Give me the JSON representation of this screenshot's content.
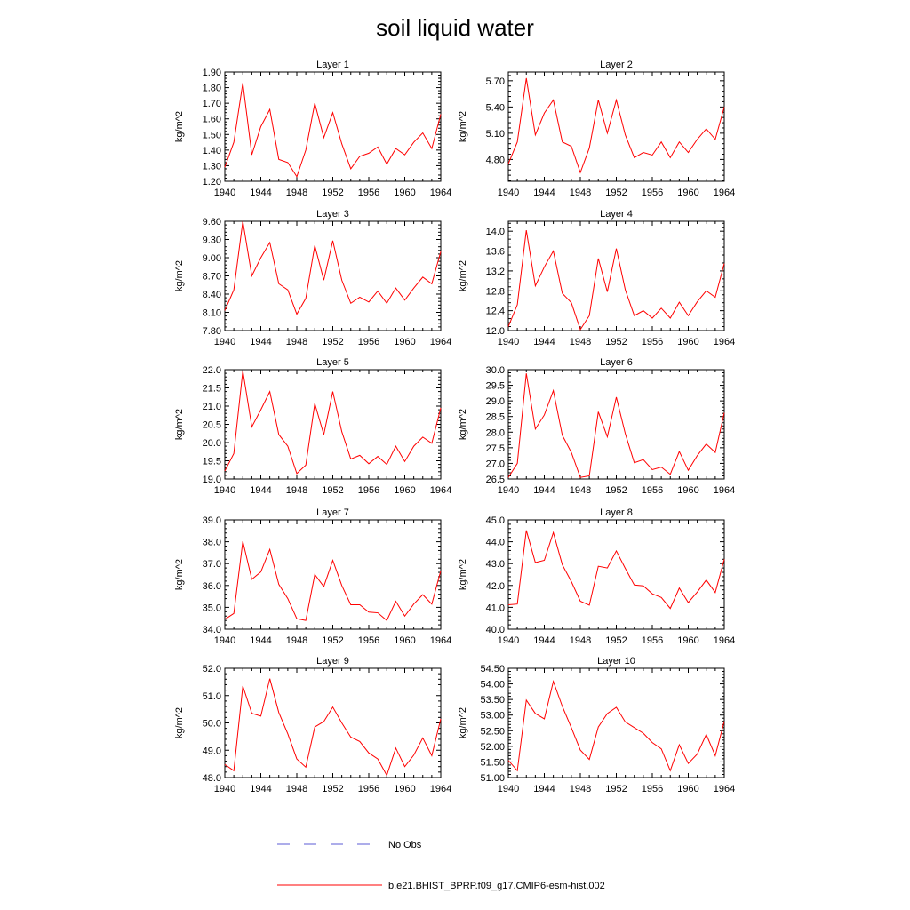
{
  "title": "soil liquid water",
  "legend": {
    "obs_label": "No Obs",
    "model_label": "b.e21.BHIST_BPRP.f09_g17.CMIP6-esm-hist.002",
    "obs_color": "#5b5bd6",
    "model_color": "#ff0000"
  },
  "chart_data": [
    {
      "type": "line",
      "title": "Layer 1",
      "ylabel": "kg/m^2",
      "xlim": [
        1940,
        1964
      ],
      "ylim": [
        1.2,
        1.9
      ],
      "xticks": [
        "1940",
        "1944",
        "1948",
        "1952",
        "1956",
        "1960",
        "1964"
      ],
      "yticks": [
        "1.20",
        "1.30",
        "1.40",
        "1.50",
        "1.60",
        "1.70",
        "1.80",
        "1.90"
      ],
      "x": [
        1940,
        1941,
        1942,
        1943,
        1944,
        1945,
        1946,
        1947,
        1948,
        1949,
        1950,
        1951,
        1952,
        1953,
        1954,
        1955,
        1956,
        1957,
        1958,
        1959,
        1960,
        1961,
        1962,
        1963,
        1964
      ],
      "series": [
        {
          "name": "b.e21.BHIST_BPRP.f09_g17.CMIP6-esm-hist.002",
          "values": [
            1.29,
            1.45,
            1.83,
            1.37,
            1.55,
            1.66,
            1.34,
            1.32,
            1.23,
            1.4,
            1.7,
            1.48,
            1.64,
            1.44,
            1.28,
            1.36,
            1.38,
            1.42,
            1.31,
            1.41,
            1.37,
            1.45,
            1.51,
            1.41,
            1.63
          ]
        }
      ]
    },
    {
      "type": "line",
      "title": "Layer 2",
      "ylabel": "kg/m^2",
      "xlim": [
        1940,
        1964
      ],
      "ylim": [
        4.55,
        5.8
      ],
      "xticks": [
        "1940",
        "1944",
        "1948",
        "1952",
        "1956",
        "1960",
        "1964"
      ],
      "yticks": [
        "4.80",
        "5.10",
        "5.40",
        "5.70"
      ],
      "x": [
        1940,
        1941,
        1942,
        1943,
        1944,
        1945,
        1946,
        1947,
        1948,
        1949,
        1950,
        1951,
        1952,
        1953,
        1954,
        1955,
        1956,
        1957,
        1958,
        1959,
        1960,
        1961,
        1962,
        1963,
        1964
      ],
      "series": [
        {
          "name": "b.e21.BHIST_BPRP.f09_g17.CMIP6-esm-hist.002",
          "values": [
            4.75,
            5.0,
            5.73,
            5.08,
            5.33,
            5.48,
            5.0,
            4.95,
            4.65,
            4.93,
            5.48,
            5.1,
            5.48,
            5.08,
            4.82,
            4.88,
            4.85,
            5.0,
            4.82,
            5.0,
            4.88,
            5.03,
            5.15,
            5.03,
            5.4
          ]
        }
      ]
    },
    {
      "type": "line",
      "title": "Layer 3",
      "ylabel": "kg/m^2",
      "xlim": [
        1940,
        1964
      ],
      "ylim": [
        7.8,
        9.6
      ],
      "xticks": [
        "1940",
        "1944",
        "1948",
        "1952",
        "1956",
        "1960",
        "1964"
      ],
      "yticks": [
        "7.80",
        "8.10",
        "8.40",
        "8.70",
        "9.00",
        "9.30",
        "9.60"
      ],
      "x": [
        1940,
        1941,
        1942,
        1943,
        1944,
        1945,
        1946,
        1947,
        1948,
        1949,
        1950,
        1951,
        1952,
        1953,
        1954,
        1955,
        1956,
        1957,
        1958,
        1959,
        1960,
        1961,
        1962,
        1963,
        1964
      ],
      "series": [
        {
          "name": "b.e21.BHIST_BPRP.f09_g17.CMIP6-esm-hist.002",
          "values": [
            8.13,
            8.47,
            9.6,
            8.7,
            9.0,
            9.25,
            8.57,
            8.47,
            8.07,
            8.33,
            9.2,
            8.63,
            9.28,
            8.63,
            8.25,
            8.35,
            8.27,
            8.45,
            8.25,
            8.5,
            8.3,
            8.5,
            8.68,
            8.57,
            9.1
          ]
        }
      ]
    },
    {
      "type": "line",
      "title": "Layer 4",
      "ylabel": "kg/m^2",
      "xlim": [
        1940,
        1964
      ],
      "ylim": [
        12.0,
        14.2
      ],
      "xticks": [
        "1940",
        "1944",
        "1948",
        "1952",
        "1956",
        "1960",
        "1964"
      ],
      "yticks": [
        "12.0",
        "12.4",
        "12.8",
        "13.2",
        "13.6",
        "14.0"
      ],
      "x": [
        1940,
        1941,
        1942,
        1943,
        1944,
        1945,
        1946,
        1947,
        1948,
        1949,
        1950,
        1951,
        1952,
        1953,
        1954,
        1955,
        1956,
        1957,
        1958,
        1959,
        1960,
        1961,
        1962,
        1963,
        1964
      ],
      "series": [
        {
          "name": "b.e21.BHIST_BPRP.f09_g17.CMIP6-esm-hist.002",
          "values": [
            12.08,
            12.52,
            14.02,
            12.9,
            13.28,
            13.6,
            12.75,
            12.56,
            12.02,
            12.3,
            13.45,
            12.78,
            13.65,
            12.82,
            12.3,
            12.4,
            12.25,
            12.45,
            12.25,
            12.57,
            12.3,
            12.58,
            12.8,
            12.67,
            13.35
          ]
        }
      ]
    },
    {
      "type": "line",
      "title": "Layer 5",
      "ylabel": "kg/m^2",
      "xlim": [
        1940,
        1964
      ],
      "ylim": [
        19.0,
        22.0
      ],
      "xticks": [
        "1940",
        "1944",
        "1948",
        "1952",
        "1956",
        "1960",
        "1964"
      ],
      "yticks": [
        "19.0",
        "19.5",
        "20.0",
        "20.5",
        "21.0",
        "21.5",
        "22.0"
      ],
      "x": [
        1940,
        1941,
        1942,
        1943,
        1944,
        1945,
        1946,
        1947,
        1948,
        1949,
        1950,
        1951,
        1952,
        1953,
        1954,
        1955,
        1956,
        1957,
        1958,
        1959,
        1960,
        1961,
        1962,
        1963,
        1964
      ],
      "series": [
        {
          "name": "b.e21.BHIST_BPRP.f09_g17.CMIP6-esm-hist.002",
          "values": [
            19.22,
            19.7,
            21.97,
            20.43,
            20.9,
            21.4,
            20.22,
            19.9,
            19.15,
            19.38,
            21.07,
            20.22,
            21.4,
            20.3,
            19.55,
            19.65,
            19.42,
            19.62,
            19.4,
            19.9,
            19.48,
            19.9,
            20.15,
            19.98,
            20.95
          ]
        }
      ]
    },
    {
      "type": "line",
      "title": "Layer 6",
      "ylabel": "kg/m^2",
      "xlim": [
        1940,
        1964
      ],
      "ylim": [
        26.5,
        30.0
      ],
      "xticks": [
        "1940",
        "1944",
        "1948",
        "1952",
        "1956",
        "1960",
        "1964"
      ],
      "yticks": [
        "26.5",
        "27.0",
        "27.5",
        "28.0",
        "28.5",
        "29.0",
        "29.5",
        "30.0"
      ],
      "x": [
        1940,
        1941,
        1942,
        1943,
        1944,
        1945,
        1946,
        1947,
        1948,
        1949,
        1950,
        1951,
        1952,
        1953,
        1954,
        1955,
        1956,
        1957,
        1958,
        1959,
        1960,
        1961,
        1962,
        1963,
        1964
      ],
      "series": [
        {
          "name": "b.e21.BHIST_BPRP.f09_g17.CMIP6-esm-hist.002",
          "values": [
            26.55,
            27.0,
            29.88,
            28.1,
            28.55,
            29.33,
            27.9,
            27.35,
            26.55,
            26.6,
            28.65,
            27.85,
            29.12,
            27.95,
            27.02,
            27.12,
            26.8,
            26.88,
            26.65,
            27.38,
            26.78,
            27.25,
            27.62,
            27.35,
            28.62
          ]
        }
      ]
    },
    {
      "type": "line",
      "title": "Layer 7",
      "ylabel": "kg/m^2",
      "xlim": [
        1940,
        1964
      ],
      "ylim": [
        34.0,
        39.0
      ],
      "xticks": [
        "1940",
        "1944",
        "1948",
        "1952",
        "1956",
        "1960",
        "1964"
      ],
      "yticks": [
        "34.0",
        "35.0",
        "36.0",
        "37.0",
        "38.0",
        "39.0"
      ],
      "x": [
        1940,
        1941,
        1942,
        1943,
        1944,
        1945,
        1946,
        1947,
        1948,
        1949,
        1950,
        1951,
        1952,
        1953,
        1954,
        1955,
        1956,
        1957,
        1958,
        1959,
        1960,
        1961,
        1962,
        1963,
        1964
      ],
      "series": [
        {
          "name": "b.e21.BHIST_BPRP.f09_g17.CMIP6-esm-hist.002",
          "values": [
            34.45,
            34.72,
            38.02,
            36.28,
            36.62,
            37.65,
            36.05,
            35.4,
            34.48,
            34.4,
            36.5,
            35.95,
            37.15,
            36.0,
            35.12,
            35.12,
            34.78,
            34.75,
            34.4,
            35.28,
            34.6,
            35.15,
            35.58,
            35.15,
            36.68
          ]
        }
      ]
    },
    {
      "type": "line",
      "title": "Layer 8",
      "ylabel": "kg/m^2",
      "xlim": [
        1940,
        1964
      ],
      "ylim": [
        40.0,
        45.0
      ],
      "xticks": [
        "1940",
        "1944",
        "1948",
        "1952",
        "1956",
        "1960",
        "1964"
      ],
      "yticks": [
        "40.0",
        "41.0",
        "42.0",
        "43.0",
        "44.0",
        "45.0"
      ],
      "x": [
        1940,
        1941,
        1942,
        1943,
        1944,
        1945,
        1946,
        1947,
        1948,
        1949,
        1950,
        1951,
        1952,
        1953,
        1954,
        1955,
        1956,
        1957,
        1958,
        1959,
        1960,
        1961,
        1962,
        1963,
        1964
      ],
      "series": [
        {
          "name": "b.e21.BHIST_BPRP.f09_g17.CMIP6-esm-hist.002",
          "values": [
            41.12,
            41.15,
            44.52,
            43.05,
            43.15,
            44.42,
            42.95,
            42.18,
            41.28,
            41.1,
            42.88,
            42.8,
            43.58,
            42.78,
            42.02,
            41.98,
            41.62,
            41.45,
            40.95,
            41.88,
            41.22,
            41.7,
            42.25,
            41.68,
            43.2
          ]
        }
      ]
    },
    {
      "type": "line",
      "title": "Layer 9",
      "ylabel": "kg/m^2",
      "xlim": [
        1940,
        1964
      ],
      "ylim": [
        48.0,
        52.0
      ],
      "xticks": [
        "1940",
        "1944",
        "1948",
        "1952",
        "1956",
        "1960",
        "1964"
      ],
      "yticks": [
        "48.0",
        "49.0",
        "50.0",
        "51.0",
        "52.0"
      ],
      "x": [
        1940,
        1941,
        1942,
        1943,
        1944,
        1945,
        1946,
        1947,
        1948,
        1949,
        1950,
        1951,
        1952,
        1953,
        1954,
        1955,
        1956,
        1957,
        1958,
        1959,
        1960,
        1961,
        1962,
        1963,
        1964
      ],
      "series": [
        {
          "name": "b.e21.BHIST_BPRP.f09_g17.CMIP6-esm-hist.002",
          "values": [
            48.48,
            48.25,
            51.35,
            50.35,
            50.25,
            51.62,
            50.38,
            49.6,
            48.68,
            48.38,
            49.85,
            50.05,
            50.58,
            50.0,
            49.48,
            49.32,
            48.9,
            48.68,
            48.08,
            49.08,
            48.4,
            48.82,
            49.45,
            48.8,
            50.15
          ]
        }
      ]
    },
    {
      "type": "line",
      "title": "Layer 10",
      "ylabel": "kg/m^2",
      "xlim": [
        1940,
        1964
      ],
      "ylim": [
        51.0,
        54.5
      ],
      "xticks": [
        "1940",
        "1944",
        "1948",
        "1952",
        "1956",
        "1960",
        "1964"
      ],
      "yticks": [
        "51.00",
        "51.50",
        "52.00",
        "52.50",
        "53.00",
        "53.50",
        "54.00",
        "54.50"
      ],
      "x": [
        1940,
        1941,
        1942,
        1943,
        1944,
        1945,
        1946,
        1947,
        1948,
        1949,
        1950,
        1951,
        1952,
        1953,
        1954,
        1955,
        1956,
        1957,
        1958,
        1959,
        1960,
        1961,
        1962,
        1963,
        1964
      ],
      "series": [
        {
          "name": "b.e21.BHIST_BPRP.f09_g17.CMIP6-esm-hist.002",
          "values": [
            51.55,
            51.22,
            53.48,
            53.05,
            52.88,
            54.08,
            53.28,
            52.6,
            51.88,
            51.58,
            52.62,
            53.05,
            53.25,
            52.78,
            52.6,
            52.42,
            52.12,
            51.92,
            51.22,
            52.05,
            51.45,
            51.75,
            52.38,
            51.7,
            52.8
          ]
        }
      ]
    }
  ]
}
